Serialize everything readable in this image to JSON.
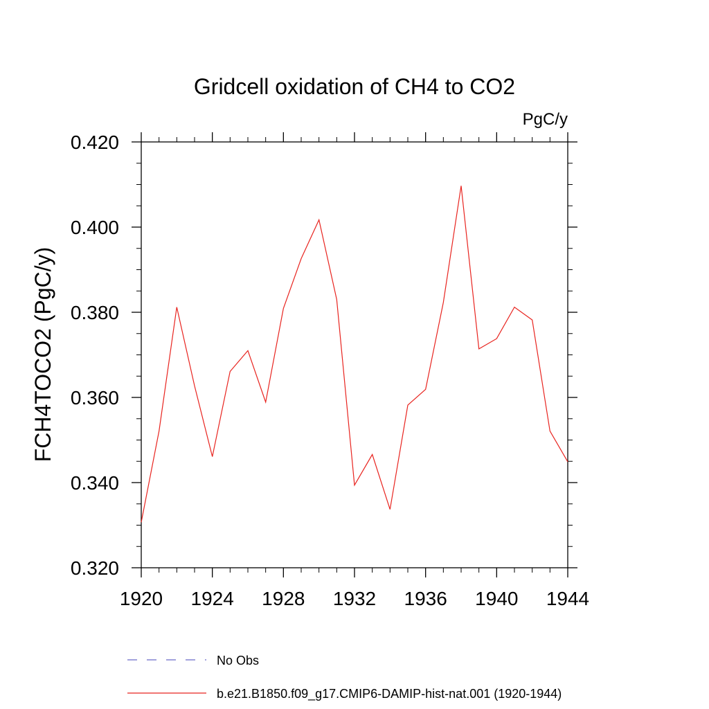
{
  "chart_data": {
    "type": "line",
    "title": "Gridcell oxidation of CH4 to CO2",
    "units": "PgC/y",
    "ylabel": "FCH4TOCO2  (PgC/y)",
    "xlabel": "",
    "xlim": [
      1920,
      1944
    ],
    "ylim": [
      0.32,
      0.42
    ],
    "x_ticks": [
      1920,
      1924,
      1928,
      1932,
      1936,
      1940,
      1944
    ],
    "y_ticks": [
      0.32,
      0.34,
      0.36,
      0.38,
      0.4,
      0.42
    ],
    "y_tick_labels": [
      "0.320",
      "0.340",
      "0.360",
      "0.380",
      "0.400",
      "0.420"
    ],
    "x_tick_labels": [
      "1920",
      "1924",
      "1928",
      "1932",
      "1936",
      "1940",
      "1944"
    ],
    "grid": false,
    "legend_position": "bottom",
    "x": [
      1920,
      1921,
      1922,
      1923,
      1924,
      1925,
      1926,
      1927,
      1928,
      1929,
      1930,
      1931,
      1932,
      1933,
      1934,
      1935,
      1936,
      1937,
      1938,
      1939,
      1940,
      1941,
      1942,
      1943,
      1944
    ],
    "series": [
      {
        "name": "b.e21.B1850.f09_g17.CMIP6-DAMIP-hist-nat.001 (1920-1944)",
        "color": "#e8231e",
        "style": "solid",
        "values": [
          0.3307,
          0.3521,
          0.3812,
          0.3627,
          0.3461,
          0.3661,
          0.371,
          0.3589,
          0.3809,
          0.3926,
          0.4017,
          0.383,
          0.3394,
          0.3466,
          0.3337,
          0.3582,
          0.3619,
          0.3823,
          0.4097,
          0.3714,
          0.3738,
          0.3812,
          0.3782,
          0.3521,
          0.3449
        ]
      }
    ],
    "legend": [
      {
        "label": "No Obs",
        "color": "#6a6ac8",
        "style": "dashed"
      },
      {
        "label": "b.e21.B1850.f09_g17.CMIP6-DAMIP-hist-nat.001 (1920-1944)",
        "color": "#e8231e",
        "style": "solid"
      }
    ]
  }
}
